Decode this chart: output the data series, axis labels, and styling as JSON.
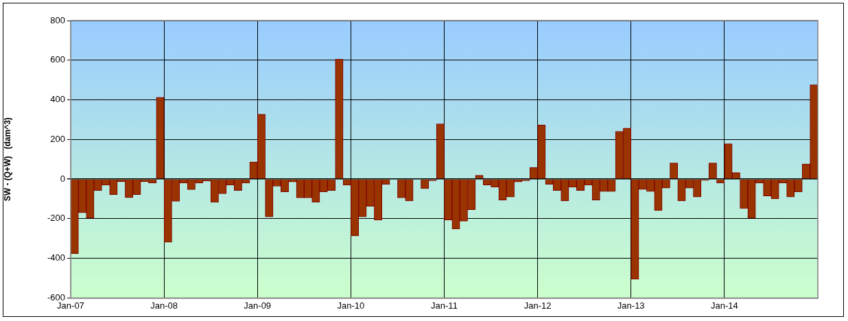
{
  "chart_data": {
    "type": "bar",
    "ylabel": "SW - (Q+W)   (dam^3)",
    "categories": [
      "Jan-07",
      null,
      null,
      null,
      null,
      null,
      null,
      null,
      null,
      null,
      null,
      null,
      "Jan-08",
      null,
      null,
      null,
      null,
      null,
      null,
      null,
      null,
      null,
      null,
      null,
      "Jan-09",
      null,
      null,
      null,
      null,
      null,
      null,
      null,
      null,
      null,
      null,
      null,
      "Jan-10",
      null,
      null,
      null,
      null,
      null,
      null,
      null,
      null,
      null,
      null,
      null,
      "Jan-11",
      null,
      null,
      null,
      null,
      null,
      null,
      null,
      null,
      null,
      null,
      null,
      "Jan-12",
      null,
      null,
      null,
      null,
      null,
      null,
      null,
      null,
      null,
      null,
      null,
      "Jan-13",
      null,
      null,
      null,
      null,
      null,
      null,
      null,
      null,
      null,
      null,
      null,
      "Jan-14",
      null,
      null,
      null,
      null,
      null,
      null,
      null,
      null,
      null,
      null,
      null
    ],
    "values": [
      -377,
      -170,
      -197,
      -57,
      -31,
      -78,
      -13,
      -94,
      -78,
      -13,
      -20,
      413,
      -319,
      -112,
      -20,
      -53,
      -20,
      -10,
      -117,
      -74,
      -31,
      -57,
      -20,
      87,
      327,
      -191,
      -36,
      -64,
      -14,
      -95,
      -95,
      -117,
      -64,
      -57,
      605,
      -31,
      -287,
      -191,
      -137,
      -207,
      -26,
      0,
      -95,
      -110,
      0,
      -48,
      -8,
      279,
      -206,
      -251,
      -212,
      -154,
      19,
      -30,
      -41,
      -106,
      -90,
      -14,
      -8,
      59,
      273,
      -26,
      -57,
      -110,
      -41,
      -57,
      -31,
      -106,
      -63,
      -63,
      241,
      257,
      -506,
      -52,
      -63,
      -159,
      -45,
      81,
      -110,
      -45,
      -90,
      -6,
      81,
      -20,
      178,
      33,
      -148,
      -197,
      -20,
      -85,
      -100,
      -20,
      -90,
      -64,
      76,
      476
    ],
    "color": "#993300",
    "ylim": [
      -600,
      800
    ],
    "yticks": [
      -600,
      -400,
      -200,
      0,
      200,
      400,
      600,
      800
    ],
    "grid": true
  }
}
